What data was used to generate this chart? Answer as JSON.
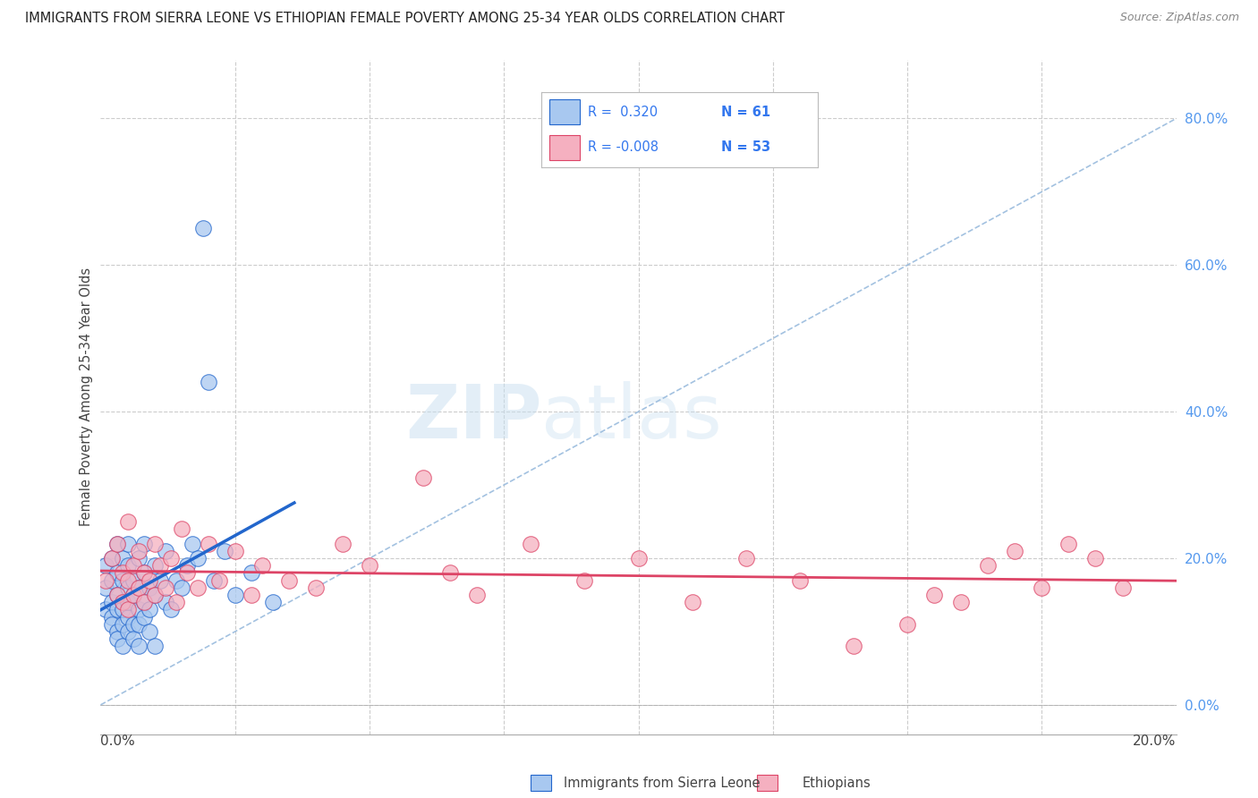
{
  "title": "IMMIGRANTS FROM SIERRA LEONE VS ETHIOPIAN FEMALE POVERTY AMONG 25-34 YEAR OLDS CORRELATION CHART",
  "source": "Source: ZipAtlas.com",
  "ylabel": "Female Poverty Among 25-34 Year Olds",
  "ylabel_right_ticks": [
    "0.0%",
    "20.0%",
    "40.0%",
    "60.0%",
    "80.0%"
  ],
  "ylabel_right_vals": [
    0.0,
    0.2,
    0.4,
    0.6,
    0.8
  ],
  "xlim": [
    0.0,
    0.2
  ],
  "ylim": [
    -0.04,
    0.88
  ],
  "legend_label1": "Immigrants from Sierra Leone",
  "legend_label2": "Ethiopians",
  "R1": 0.32,
  "N1": 61,
  "R2": -0.008,
  "N2": 53,
  "color_blue": "#A8C8F0",
  "color_pink": "#F5B0C0",
  "color_blue_line": "#2266CC",
  "color_pink_line": "#DD4466",
  "background": "#FFFFFF",
  "watermark": "ZIPatlas",
  "blue_points_x": [
    0.001,
    0.001,
    0.001,
    0.002,
    0.002,
    0.002,
    0.002,
    0.002,
    0.003,
    0.003,
    0.003,
    0.003,
    0.003,
    0.003,
    0.004,
    0.004,
    0.004,
    0.004,
    0.004,
    0.004,
    0.005,
    0.005,
    0.005,
    0.005,
    0.005,
    0.005,
    0.006,
    0.006,
    0.006,
    0.006,
    0.007,
    0.007,
    0.007,
    0.007,
    0.007,
    0.008,
    0.008,
    0.008,
    0.008,
    0.009,
    0.009,
    0.009,
    0.01,
    0.01,
    0.01,
    0.011,
    0.012,
    0.012,
    0.013,
    0.014,
    0.015,
    0.016,
    0.017,
    0.018,
    0.019,
    0.02,
    0.021,
    0.023,
    0.025,
    0.028,
    0.032
  ],
  "blue_points_y": [
    0.16,
    0.13,
    0.19,
    0.14,
    0.17,
    0.12,
    0.2,
    0.11,
    0.15,
    0.13,
    0.18,
    0.1,
    0.22,
    0.09,
    0.17,
    0.14,
    0.11,
    0.2,
    0.08,
    0.13,
    0.16,
    0.12,
    0.19,
    0.1,
    0.14,
    0.22,
    0.15,
    0.11,
    0.17,
    0.09,
    0.2,
    0.13,
    0.16,
    0.11,
    0.08,
    0.22,
    0.14,
    0.18,
    0.12,
    0.16,
    0.1,
    0.13,
    0.19,
    0.15,
    0.08,
    0.17,
    0.14,
    0.21,
    0.13,
    0.17,
    0.16,
    0.19,
    0.22,
    0.2,
    0.65,
    0.44,
    0.17,
    0.21,
    0.15,
    0.18,
    0.14
  ],
  "pink_points_x": [
    0.001,
    0.002,
    0.003,
    0.003,
    0.004,
    0.004,
    0.005,
    0.005,
    0.005,
    0.006,
    0.006,
    0.007,
    0.007,
    0.008,
    0.008,
    0.009,
    0.01,
    0.01,
    0.011,
    0.012,
    0.013,
    0.014,
    0.015,
    0.016,
    0.018,
    0.02,
    0.022,
    0.025,
    0.028,
    0.03,
    0.035,
    0.04,
    0.045,
    0.05,
    0.06,
    0.065,
    0.07,
    0.08,
    0.09,
    0.1,
    0.11,
    0.12,
    0.13,
    0.14,
    0.15,
    0.155,
    0.16,
    0.165,
    0.17,
    0.175,
    0.18,
    0.185,
    0.19
  ],
  "pink_points_y": [
    0.17,
    0.2,
    0.15,
    0.22,
    0.18,
    0.14,
    0.25,
    0.17,
    0.13,
    0.19,
    0.15,
    0.21,
    0.16,
    0.18,
    0.14,
    0.17,
    0.22,
    0.15,
    0.19,
    0.16,
    0.2,
    0.14,
    0.24,
    0.18,
    0.16,
    0.22,
    0.17,
    0.21,
    0.15,
    0.19,
    0.17,
    0.16,
    0.22,
    0.19,
    0.31,
    0.18,
    0.15,
    0.22,
    0.17,
    0.2,
    0.14,
    0.2,
    0.17,
    0.08,
    0.11,
    0.15,
    0.14,
    0.19,
    0.21,
    0.16,
    0.22,
    0.2,
    0.16
  ]
}
